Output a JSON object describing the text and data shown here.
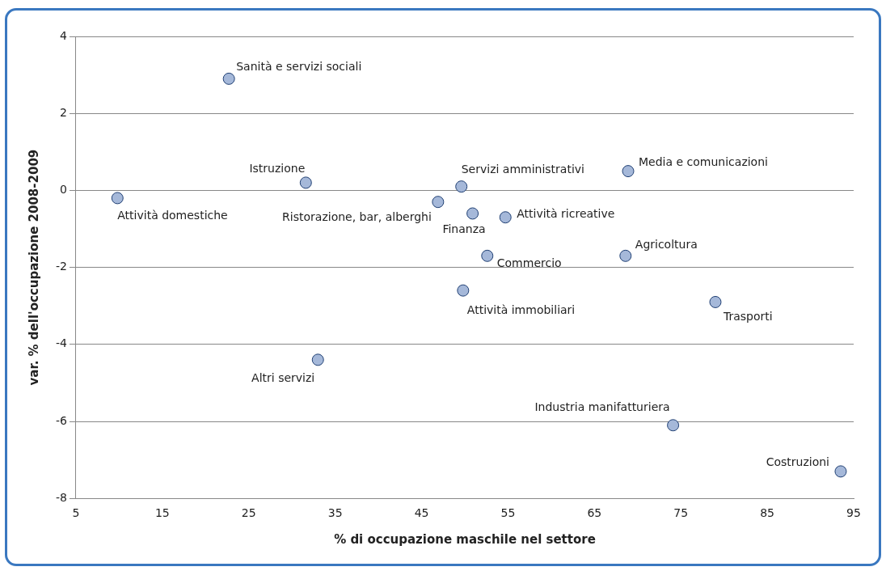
{
  "chart_data": {
    "type": "scatter",
    "xlabel": "% di occupazione maschile nel settore",
    "ylabel": "var. % dell'occupazione 2008-2009",
    "x": [
      9.8,
      22.7,
      31.6,
      33,
      46.9,
      49.6,
      50.9,
      54.7,
      52.6,
      49.8,
      68.9,
      68.6,
      79,
      74.1,
      93.5
    ],
    "values": [
      -0.2,
      2.9,
      0.2,
      -4.4,
      -0.3,
      0.1,
      -0.6,
      -0.7,
      -1.7,
      -2.6,
      0.5,
      -1.7,
      -2.9,
      -6.1,
      -7.3
    ],
    "color": "#a5b8d9",
    "marker": "circle",
    "grid": "y",
    "legend": false,
    "xlim": [
      5,
      95
    ],
    "xticks": [
      5,
      15,
      25,
      35,
      45,
      55,
      65,
      75,
      85,
      95
    ],
    "ylim": [
      -8,
      4
    ],
    "yticks": [
      -8,
      -6,
      -4,
      -2,
      0,
      2,
      4
    ],
    "annotations": [
      {
        "text": "Attività domestiche",
        "x": 9.8,
        "y": -0.2
      },
      {
        "text": "Sanità e servizi sociali",
        "x": 22.7,
        "y": 2.9
      },
      {
        "text": "Istruzione",
        "x": 31.6,
        "y": 0.2
      },
      {
        "text": "Altri servizi",
        "x": 33,
        "y": -4.4
      },
      {
        "text": "Ristorazione, bar, alberghi",
        "x": 46.9,
        "y": -0.3
      },
      {
        "text": "Servizi amministrativi",
        "x": 49.6,
        "y": 0.1
      },
      {
        "text": "Finanza",
        "x": 50.9,
        "y": -0.6
      },
      {
        "text": "Attività ricreative",
        "x": 54.7,
        "y": -0.7
      },
      {
        "text": "Commercio",
        "x": 52.6,
        "y": -1.7
      },
      {
        "text": "Attività immobiliari",
        "x": 49.8,
        "y": -2.6
      },
      {
        "text": "Media e comunicazioni",
        "x": 68.9,
        "y": 0.5
      },
      {
        "text": "Agricoltura",
        "x": 68.6,
        "y": -1.7
      },
      {
        "text": "Trasporti",
        "x": 79,
        "y": -2.9
      },
      {
        "text": "Industria manifatturiera",
        "x": 74.1,
        "y": -6.1
      },
      {
        "text": "Costruzioni",
        "x": 93.5,
        "y": -7.3
      }
    ]
  }
}
